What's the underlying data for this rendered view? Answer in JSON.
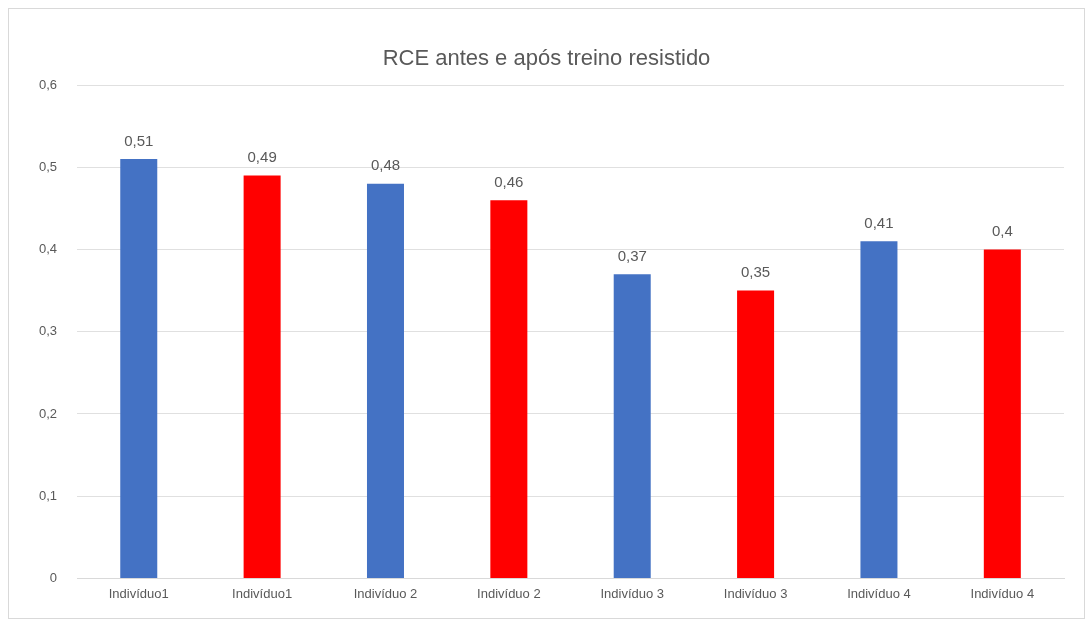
{
  "chart_data": {
    "type": "bar",
    "title": "RCE antes e após treino resistido",
    "categories": [
      "Indivíduo1",
      "Indivíduo1",
      "Indivíduo 2",
      "Indivíduo 2",
      "Indivíduo 3",
      "Indivíduo 3",
      "Indivíduo 4",
      "Indivíduo 4"
    ],
    "values": [
      0.51,
      0.49,
      0.48,
      0.46,
      0.37,
      0.35,
      0.41,
      0.4
    ],
    "value_labels": [
      "0,51",
      "0,49",
      "0,48",
      "0,46",
      "0,37",
      "0,35",
      "0,41",
      "0,4"
    ],
    "colors": [
      "#4472c4",
      "#ff0000",
      "#4472c4",
      "#ff0000",
      "#4472c4",
      "#ff0000",
      "#4472c4",
      "#ff0000"
    ],
    "ylim": [
      0,
      0.6
    ],
    "yticks": [
      {
        "value": 0,
        "label": "0"
      },
      {
        "value": 0.1,
        "label": "0,1"
      },
      {
        "value": 0.2,
        "label": "0,2"
      },
      {
        "value": 0.3,
        "label": "0,3"
      },
      {
        "value": 0.4,
        "label": "0,4"
      },
      {
        "value": 0.5,
        "label": "0,5"
      },
      {
        "value": 0.6,
        "label": "0,6"
      }
    ],
    "grid": "y"
  }
}
